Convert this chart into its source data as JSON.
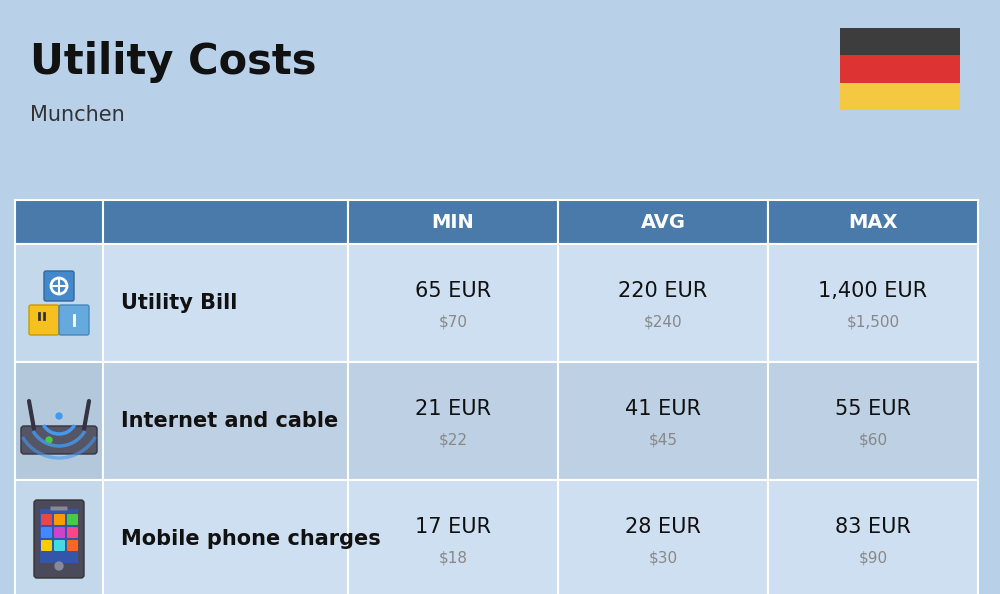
{
  "title": "Utility Costs",
  "subtitle": "Munchen",
  "background_color": "#b8d0e8",
  "header_color": "#4a7aaa",
  "header_text_color": "#ffffff",
  "row_colors_light": "#cddff0",
  "row_colors_dark": "#bdd0e4",
  "icon_col_bg_light": "#c4d8ec",
  "icon_col_bg_dark": "#b4c8dc",
  "columns": [
    "MIN",
    "AVG",
    "MAX"
  ],
  "rows": [
    {
      "label": "Utility Bill",
      "min_eur": "65 EUR",
      "min_usd": "$70",
      "avg_eur": "220 EUR",
      "avg_usd": "$240",
      "max_eur": "1,400 EUR",
      "max_usd": "$1,500"
    },
    {
      "label": "Internet and cable",
      "min_eur": "21 EUR",
      "min_usd": "$22",
      "avg_eur": "41 EUR",
      "avg_usd": "$45",
      "max_eur": "55 EUR",
      "max_usd": "$60"
    },
    {
      "label": "Mobile phone charges",
      "min_eur": "17 EUR",
      "min_usd": "$18",
      "avg_eur": "28 EUR",
      "avg_usd": "$30",
      "max_eur": "83 EUR",
      "max_usd": "$90"
    }
  ],
  "flag_colors": [
    "#3d3d3d",
    "#dd3333",
    "#f5c842"
  ],
  "title_fontsize": 30,
  "subtitle_fontsize": 15,
  "header_fontsize": 14,
  "cell_eur_fontsize": 15,
  "cell_usd_fontsize": 11,
  "label_fontsize": 15
}
